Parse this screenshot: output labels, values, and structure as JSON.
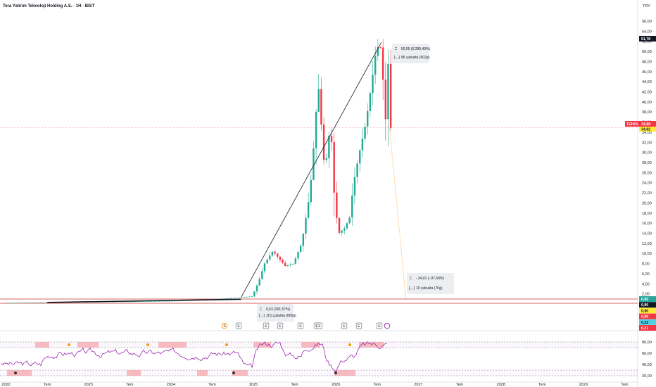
{
  "header": {
    "title": "Tera Yatirim Teknoloji Holding A.S. · 1H · BIST",
    "currency": "TRY"
  },
  "colors": {
    "up": "#22ab94",
    "down": "#f23645",
    "rsi": "#9c27b0",
    "rsi_hot": "#e31b23",
    "line": "#131722",
    "bg": "#ffffff"
  },
  "price_tags": {
    "symbol": "TEHOL",
    "last": "34,88",
    "prev": "34,82",
    "high": "51,78",
    "stack": [
      {
        "text": "0,85",
        "bg": "#26a69a",
        "fg": "#ffffff"
      },
      {
        "text": "0,80",
        "bg": "#131722",
        "fg": "#ffffff"
      },
      {
        "text": "0,80",
        "bg": "#ffeb3b",
        "fg": "#131722"
      },
      {
        "text": "0,80",
        "bg": "#f23645",
        "fg": "#ffffff"
      },
      {
        "text": "0,22",
        "bg": "#4dd0e1",
        "fg": "#131722"
      },
      {
        "text": "0,21",
        "bg": "#f23645",
        "fg": "#ffffff"
      }
    ]
  },
  "measures": [
    {
      "change": "50,55 (6.280,40%)",
      "bars": "86 çubukta (602g)"
    },
    {
      "change": "0,63 (291,57%)",
      "bars": "115 çubukta (805g)"
    },
    {
      "change": "−34,01 (−97,69%)",
      "bars": "10 çubukta (70g)"
    }
  ],
  "events": [
    "S",
    "E",
    "E",
    "E",
    "E",
    "E",
    "E",
    "E",
    "E",
    "E"
  ],
  "chart_data": [
    {
      "type": "line",
      "name": "price",
      "y_axis_ticks": [
        "56,00",
        "54,00",
        "52,00",
        "50,00",
        "48,00",
        "46,00",
        "44,00",
        "42,00",
        "40,00",
        "38,00",
        "36,00",
        "34,00",
        "32,00",
        "30,00",
        "28,00",
        "26,00",
        "24,00",
        "22,00",
        "20,00",
        "18,00",
        "16,00",
        "14,00",
        "12,00",
        "10,00",
        "8,00",
        "6,00",
        "4,00",
        "2,00"
      ],
      "ylim": [
        0,
        56
      ],
      "x_axis_ticks": [
        "2022",
        "Tem",
        "2023",
        "Tem",
        "2024",
        "Tem",
        "2025",
        "Tem",
        "2026",
        "Tem",
        "2027",
        "Tem",
        "2028",
        "Tem",
        "2029",
        "Tem"
      ],
      "x": [
        2022.0,
        2022.5,
        2023.0,
        2023.5,
        2024.0,
        2024.5,
        2024.85,
        2025.0,
        2025.08,
        2025.15,
        2025.25,
        2025.4,
        2025.5,
        2025.6,
        2025.7,
        2025.75,
        2025.8,
        2025.88,
        2025.95,
        2026.0,
        2026.05,
        2026.12,
        2026.18,
        2026.23,
        2026.3,
        2026.38,
        2026.45,
        2026.5,
        2026.55,
        2026.58,
        2026.62,
        2026.65,
        2026.68
      ],
      "values": [
        0.22,
        0.3,
        0.4,
        0.5,
        0.6,
        0.9,
        1.3,
        1.5,
        4.5,
        8.0,
        10.5,
        7.5,
        8.0,
        12.0,
        22.0,
        32.0,
        44.0,
        26.0,
        36.0,
        20.0,
        14.0,
        15.0,
        17.0,
        24.0,
        30.0,
        36.0,
        44.0,
        50.0,
        51.78,
        46.0,
        36.0,
        48.0,
        34.88
      ],
      "last_value": 34.88
    },
    {
      "type": "line",
      "name": "RSI",
      "y_axis_ticks": [
        "80,00",
        "60,00",
        "40,00",
        "20,00"
      ],
      "ylim": [
        15,
        90
      ],
      "levels": [
        80,
        70,
        30,
        20
      ]
    }
  ]
}
